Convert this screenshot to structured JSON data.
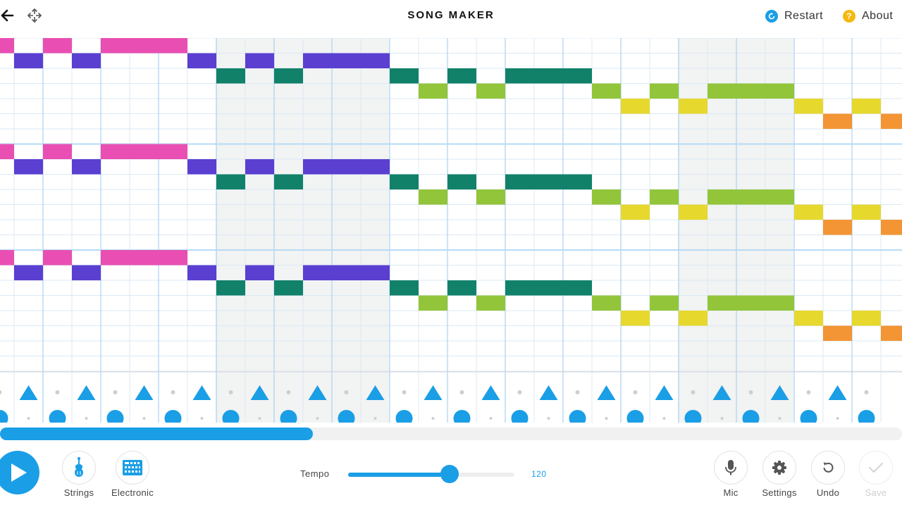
{
  "header": {
    "title": "SONG MAKER",
    "restart_label": "Restart",
    "about_label": "About",
    "back_icon": "arrow-left-icon",
    "move_icon": "move-arrows-icon"
  },
  "colors": {
    "accent": "#1a9ee6",
    "about_icon": "#f5b80f",
    "notes": [
      "#e94fb2",
      "#5b3fd1",
      "#12816a",
      "#92c53a",
      "#e7d82e",
      "#f39534"
    ]
  },
  "melody": {
    "rows_visible": 22,
    "columns_visible": 31,
    "sequence": [
      [
        0,
        0
      ],
      [
        1,
        1
      ],
      [
        0,
        2
      ],
      [
        1,
        3
      ],
      [
        0,
        4
      ],
      [
        0,
        5
      ],
      [
        0,
        6
      ],
      [
        1,
        7
      ],
      [
        2,
        8
      ],
      [
        1,
        9
      ],
      [
        2,
        10
      ],
      [
        1,
        11
      ],
      [
        1,
        12
      ],
      [
        1,
        13
      ],
      [
        2,
        14
      ],
      [
        3,
        15
      ],
      [
        2,
        16
      ],
      [
        3,
        17
      ],
      [
        2,
        18
      ],
      [
        2,
        19
      ],
      [
        2,
        20
      ],
      [
        3,
        21
      ],
      [
        4,
        22
      ],
      [
        3,
        23
      ],
      [
        4,
        24
      ],
      [
        3,
        25
      ],
      [
        3,
        26
      ],
      [
        3,
        27
      ],
      [
        4,
        28
      ],
      [
        5,
        29
      ],
      [
        4,
        30
      ],
      [
        5,
        31
      ]
    ],
    "octave_repeats": 3,
    "octave_start_rows": [
      0,
      7,
      14
    ]
  },
  "rhythm": {
    "triangle_beats": [
      1,
      3,
      5,
      7,
      9,
      11,
      13,
      15,
      17,
      19,
      21,
      23,
      25,
      27,
      29
    ],
    "circle_beats": [
      0,
      2,
      4,
      6,
      8,
      10,
      12,
      14,
      16,
      18,
      20,
      22,
      24,
      26,
      28,
      30
    ]
  },
  "playback": {
    "progress": 0.347
  },
  "controls": {
    "play_icon": "play-icon",
    "instrument_label": "Strings",
    "instrument_icon": "violin-icon",
    "percussion_label": "Electronic",
    "percussion_icon": "drum-machine-icon",
    "tempo_label": "Tempo",
    "tempo_value": "120",
    "tempo_fraction": 0.61,
    "mic_label": "Mic",
    "settings_label": "Settings",
    "undo_label": "Undo",
    "save_label": "Save"
  }
}
